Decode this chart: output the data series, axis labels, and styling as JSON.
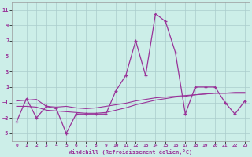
{
  "x": [
    0,
    1,
    2,
    3,
    4,
    5,
    6,
    7,
    8,
    9,
    10,
    11,
    12,
    13,
    14,
    15,
    16,
    17,
    18,
    19,
    20,
    21,
    22,
    23
  ],
  "y_main": [
    -3.5,
    -0.5,
    -3.0,
    -1.5,
    -1.8,
    -5.0,
    -2.5,
    -2.5,
    -2.5,
    -2.5,
    0.5,
    2.5,
    7.0,
    2.5,
    10.5,
    9.5,
    5.5,
    -2.5,
    1.0,
    1.0,
    1.0,
    -1.0,
    -2.5,
    -0.8
  ],
  "y_trend1": [
    -0.8,
    -0.7,
    -0.6,
    -1.5,
    -1.6,
    -1.5,
    -1.7,
    -1.8,
    -1.7,
    -1.5,
    -1.3,
    -1.1,
    -0.8,
    -0.6,
    -0.4,
    -0.3,
    -0.2,
    -0.1,
    0.0,
    0.1,
    0.2,
    0.2,
    0.3,
    0.3
  ],
  "y_trend2": [
    -1.5,
    -1.5,
    -1.6,
    -2.0,
    -2.1,
    -2.2,
    -2.3,
    -2.4,
    -2.4,
    -2.3,
    -2.0,
    -1.7,
    -1.3,
    -1.0,
    -0.7,
    -0.5,
    -0.3,
    -0.2,
    0.0,
    0.1,
    0.2,
    0.2,
    0.2,
    0.2
  ],
  "line_color": "#993399",
  "bg_color": "#cceee8",
  "grid_color": "#aacccc",
  "xlabel": "Windchill (Refroidissement éolien,°C)",
  "ylim": [
    -6,
    12
  ],
  "yticks": [
    -5,
    -3,
    -1,
    1,
    3,
    5,
    7,
    9,
    11
  ],
  "xlim": [
    -0.5,
    23.5
  ],
  "xticks": [
    0,
    1,
    2,
    3,
    4,
    5,
    6,
    7,
    8,
    9,
    10,
    11,
    12,
    13,
    14,
    15,
    16,
    17,
    18,
    19,
    20,
    21,
    22,
    23
  ]
}
